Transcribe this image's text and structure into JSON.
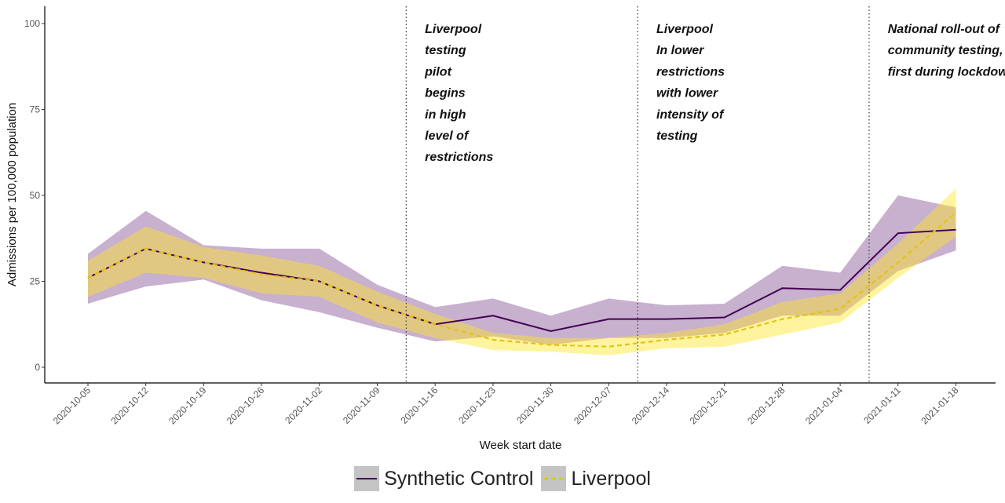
{
  "chart_data": {
    "type": "line",
    "xlabel": "Week start date",
    "ylabel": "Admissions per 100,000 population",
    "ylim": [
      0,
      100
    ],
    "yticks": [
      0,
      25,
      50,
      75,
      100
    ],
    "grid": false,
    "legend_position": "bottom",
    "x": [
      "2020-10-05",
      "2020-10-12",
      "2020-10-19",
      "2020-10-26",
      "2020-11-02",
      "2020-11-09",
      "2020-11-16",
      "2020-11-23",
      "2020-11-30",
      "2020-12-07",
      "2020-12-14",
      "2020-12-21",
      "2020-12-28",
      "2021-01-04",
      "2021-01-11",
      "2021-01-18"
    ],
    "series": [
      {
        "name": "Synthetic Control",
        "color": "#440154",
        "ribbon_color": "#9b70a8",
        "line_style": "solid",
        "values": [
          26,
          34.5,
          30.5,
          27.5,
          25,
          18,
          12.5,
          15,
          10.5,
          14,
          14,
          14.5,
          23,
          22.5,
          39,
          40
        ],
        "lower": [
          18.5,
          23.5,
          25.5,
          19.5,
          16,
          11.5,
          7.5,
          9,
          6.5,
          8.5,
          8.5,
          10,
          15,
          15,
          28,
          34
        ],
        "upper": [
          33,
          45.5,
          35.5,
          34.5,
          34.5,
          24,
          17.5,
          20,
          15,
          20,
          18,
          18.5,
          29.5,
          27.5,
          50,
          46.5
        ]
      },
      {
        "name": "Liverpool",
        "color": "#e3c218",
        "ribbon_color": "#fde725",
        "line_style": "dashed",
        "values": [
          26,
          34.5,
          30.5,
          27,
          25,
          18,
          12.5,
          8,
          6.5,
          6,
          8,
          9.5,
          14,
          17,
          30.5,
          45
        ],
        "lower": [
          20.5,
          27.5,
          26,
          21.5,
          20.5,
          13,
          8.5,
          5,
          4.5,
          3.5,
          5.5,
          6,
          9.5,
          13,
          26,
          38
        ],
        "upper": [
          31,
          41,
          35,
          32.5,
          29.5,
          22,
          15.5,
          10,
          8.5,
          8.5,
          10,
          12.5,
          19,
          21.5,
          36,
          52
        ]
      }
    ],
    "vlines": [
      5.5,
      9.5,
      13.5
    ],
    "annotations": [
      {
        "anchor_index": 5.85,
        "lines": [
          "Liverpool",
          "testing",
          "pilot",
          "begins",
          "in high",
          "level of",
          "restrictions"
        ]
      },
      {
        "anchor_index": 9.85,
        "lines": [
          "Liverpool",
          "In lower",
          "restrictions",
          "with lower",
          "intensity of",
          "testing"
        ]
      },
      {
        "anchor_index": 13.85,
        "lines": [
          "National roll-out of",
          "community testing,",
          "first during lockdown"
        ]
      }
    ]
  }
}
